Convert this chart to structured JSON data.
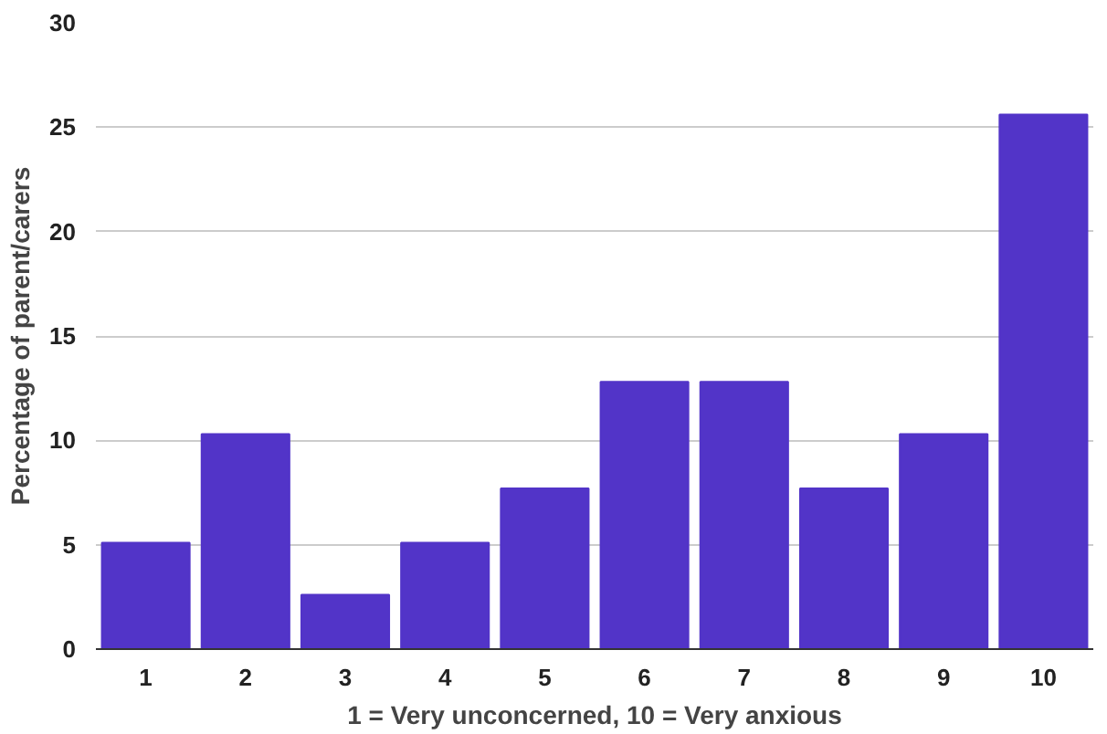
{
  "chart_data": {
    "type": "bar",
    "xlabel": "1 = Very unconcerned, 10 = Very anxious",
    "ylabel": "Percentage of parent/carers",
    "categories": [
      "1",
      "2",
      "3",
      "4",
      "5",
      "6",
      "7",
      "8",
      "9",
      "10"
    ],
    "values": [
      5.1,
      10.3,
      2.6,
      5.1,
      7.7,
      12.8,
      12.8,
      7.7,
      10.3,
      25.6
    ],
    "color": "#5234c8",
    "ylim": [
      0,
      30
    ],
    "yticks": [
      0,
      5,
      10,
      15,
      20,
      25,
      30
    ],
    "grid": "y"
  }
}
